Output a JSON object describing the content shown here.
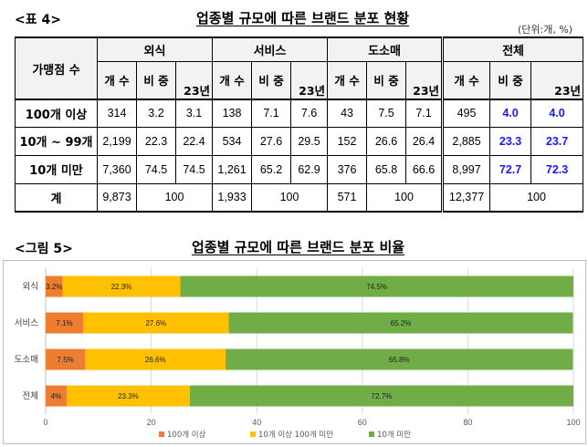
{
  "table4": {
    "caption": "<표 4>",
    "title": "업종별 규모에 따른 브랜드 분포 현황",
    "unit": "(단위:개, %)",
    "row_header": "가맹점 수",
    "groups": [
      "외식",
      "서비스",
      "도소매",
      "전체"
    ],
    "sub_count": "개 수",
    "sub_share": "비 중",
    "sub_year": "23년",
    "rows": [
      {
        "label": "100개 이상",
        "cells": [
          "314",
          "3.2",
          "3.1",
          "138",
          "7.1",
          "7.6",
          "43",
          "7.5",
          "7.1",
          "495",
          "4.0",
          "4.0"
        ]
      },
      {
        "label": "10개 ~ 99개",
        "cells": [
          "2,199",
          "22.3",
          "22.4",
          "534",
          "27.6",
          "29.5",
          "152",
          "26.6",
          "26.4",
          "2,885",
          "23.3",
          "23.7"
        ]
      },
      {
        "label": "10개 미만",
        "cells": [
          "7,360",
          "74.5",
          "74.5",
          "1,261",
          "65.2",
          "62.9",
          "376",
          "65.8",
          "66.6",
          "8,997",
          "72.7",
          "72.3"
        ]
      }
    ],
    "total_row": {
      "label": "계",
      "counts": [
        "9,873",
        "1,933",
        "571",
        "12,377"
      ],
      "share": "100"
    }
  },
  "figure5": {
    "caption": "<그림 5>",
    "title": "업종별 규모에 따른 브랜드 분포 비율"
  },
  "chart_data": {
    "type": "bar",
    "orientation": "horizontal",
    "stacked": true,
    "categories": [
      "외식",
      "서비스",
      "도소매",
      "전체"
    ],
    "series": [
      {
        "name": "100개 이상",
        "color": "#ed7d31",
        "values": [
          3.2,
          7.1,
          7.5,
          4.0
        ],
        "labels": [
          "3.2%",
          "7.1%",
          "7.5%",
          "4%"
        ]
      },
      {
        "name": "10개 이상 100개 미만",
        "color": "#ffc000",
        "values": [
          22.3,
          27.6,
          26.6,
          23.3
        ],
        "labels": [
          "22.3%",
          "27.6%",
          "26.6%",
          "23.3%"
        ]
      },
      {
        "name": "10개 미만",
        "color": "#70ad47",
        "values": [
          74.5,
          65.2,
          65.8,
          72.7
        ],
        "labels": [
          "74.5%",
          "65.2%",
          "65.8%",
          "72.7%"
        ]
      }
    ],
    "xlim": [
      0,
      100
    ],
    "xticks": [
      "0",
      "20",
      "40",
      "60",
      "80",
      "100"
    ],
    "grid": "vertical",
    "legend": "bottom"
  }
}
